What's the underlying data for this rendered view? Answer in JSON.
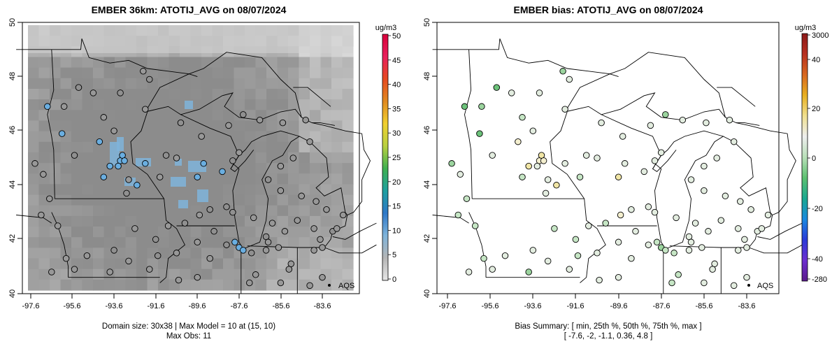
{
  "chart_data": [
    {
      "type": "heatmap",
      "title": "EMBER 36km: ATOTIJ_AVG on 08/07/2024",
      "x_ticks": [
        "-97.6",
        "-95.6",
        "-93.6",
        "-91.6",
        "-89.6",
        "-87.6",
        "-85.6",
        "-83.6"
      ],
      "y_ticks": [
        "40",
        "42",
        "44",
        "46",
        "48",
        "50"
      ],
      "xlim": [
        -98.3,
        -83.2
      ],
      "ylim": [
        40.0,
        50.0
      ],
      "colorbar": {
        "unit": "ug/m3",
        "ticks": [
          "0",
          "5",
          "10",
          "15",
          "20",
          "25",
          "30",
          "35",
          "40",
          "45",
          "50"
        ],
        "range": [
          0,
          50
        ]
      },
      "site_label": "AQS",
      "footer": [
        "Domain size: 30x38 | Max Model = 10 at (15, 10)",
        "Max Obs: 11"
      ]
    },
    {
      "type": "scatter",
      "title": "EMBER bias: ATOTIJ_AVG on 08/07/2024",
      "x_ticks": [
        "-97.6",
        "-95.6",
        "-93.6",
        "-91.6",
        "-89.6",
        "-87.6",
        "-85.6",
        "-83.6"
      ],
      "y_ticks": [
        "40",
        "42",
        "44",
        "46",
        "48",
        "50"
      ],
      "xlim": [
        -98.3,
        -83.2
      ],
      "ylim": [
        40.0,
        50.0
      ],
      "colorbar": {
        "unit": "ug/m3",
        "ticks": [
          "3000",
          "40",
          "20",
          "0",
          "-20",
          "-40",
          "-280"
        ],
        "range": [
          -280,
          3000
        ]
      },
      "site_label": "AQS",
      "footer": [
        "Bias Summary: [ min, 25th %, 50th %, 75th %, max ]",
        "[ -7.6,  -2,  -1.1,  0.36,  4.8 ]"
      ]
    }
  ]
}
